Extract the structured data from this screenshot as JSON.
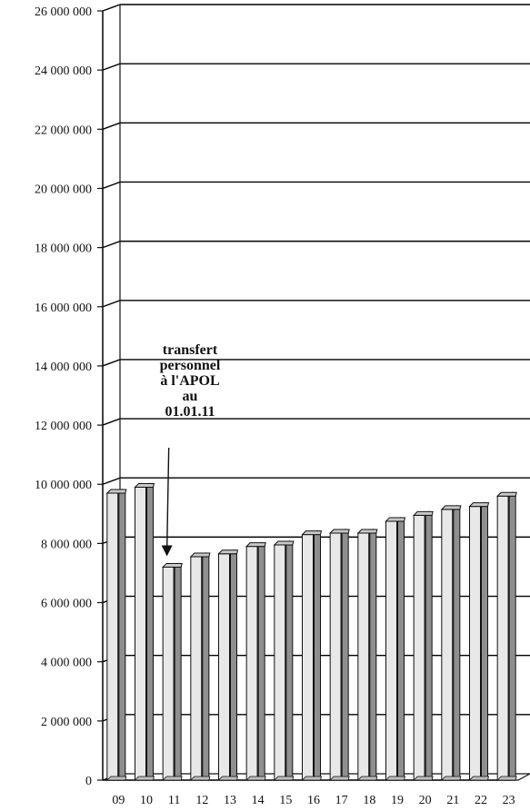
{
  "chart_data": {
    "type": "bar",
    "title": "",
    "xlabel": "",
    "ylabel": "",
    "categories": [
      "09",
      "10",
      "11",
      "12",
      "13",
      "14",
      "15",
      "16",
      "17",
      "18",
      "19",
      "20",
      "21",
      "22",
      "23"
    ],
    "values": [
      9700000,
      9900000,
      7200000,
      7550000,
      7650000,
      7900000,
      7950000,
      8300000,
      8350000,
      8350000,
      8750000,
      8950000,
      9150000,
      9250000,
      9600000
    ],
    "ylim": [
      0,
      26000000
    ],
    "y_ticks": [
      0,
      2000000,
      4000000,
      6000000,
      8000000,
      10000000,
      12000000,
      14000000,
      16000000,
      18000000,
      20000000,
      22000000,
      24000000,
      26000000
    ],
    "y_tick_labels": [
      "0",
      "2 000 000",
      "4 000 000",
      "6 000 000",
      "8 000 000",
      "10 000 000",
      "12 000 000",
      "14 000 000",
      "16 000 000",
      "18 000 000",
      "20 000 000",
      "22 000 000",
      "24 000 000",
      "26 000 000"
    ],
    "grid": true,
    "style": "3d",
    "annotation": {
      "lines": [
        "transfert",
        "personnel",
        "à l'APOL",
        "au",
        "01.01.11"
      ],
      "points_to": "11"
    },
    "colors": {
      "bar_front": "#e8e8e8",
      "bar_side": "#8f8f8f",
      "bar_top": "#c9c9c9",
      "outline": "#111111",
      "gridline": "#000000",
      "background": "#ffffff"
    }
  }
}
